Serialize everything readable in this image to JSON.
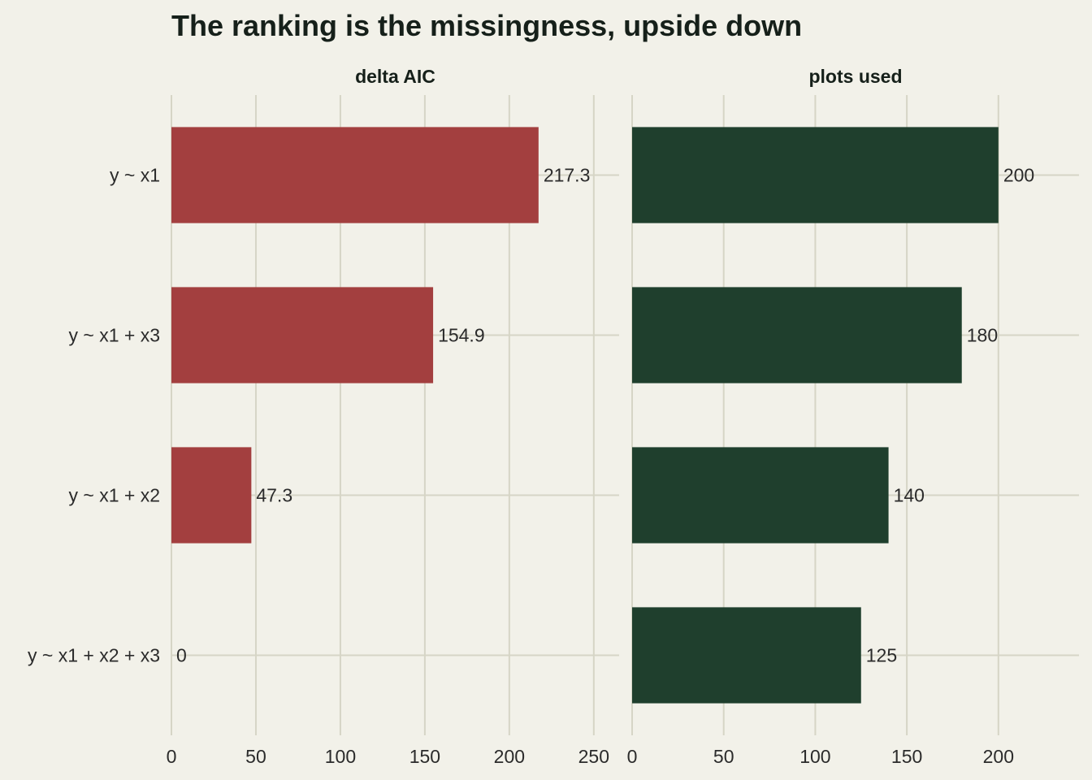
{
  "chart_data": {
    "type": "bar",
    "title": "The ranking is the missingness, upside down",
    "categories": [
      "y ~ x1",
      "y ~ x1 + x3",
      "y ~ x1 + x2",
      "y ~ x1 + x2 + x3"
    ],
    "panels": [
      {
        "title": "delta AIC",
        "values": [
          217.3,
          154.9,
          47.3,
          0
        ],
        "labels": [
          "217.3",
          "154.9",
          "47.3",
          "0"
        ],
        "xticks": [
          "0",
          "50",
          "100",
          "150",
          "200",
          "250"
        ],
        "xlim": [
          0,
          265
        ],
        "color": "#a33f3f"
      },
      {
        "title": "plots used",
        "values": [
          200,
          180,
          140,
          125
        ],
        "labels": [
          "200",
          "180",
          "140",
          "125"
        ],
        "xticks": [
          "0",
          "50",
          "100",
          "150",
          "200"
        ],
        "xlim": [
          0,
          244
        ],
        "color": "#1f3f2d"
      }
    ],
    "orientation": "horizontal",
    "grid": true,
    "legend": "none"
  }
}
